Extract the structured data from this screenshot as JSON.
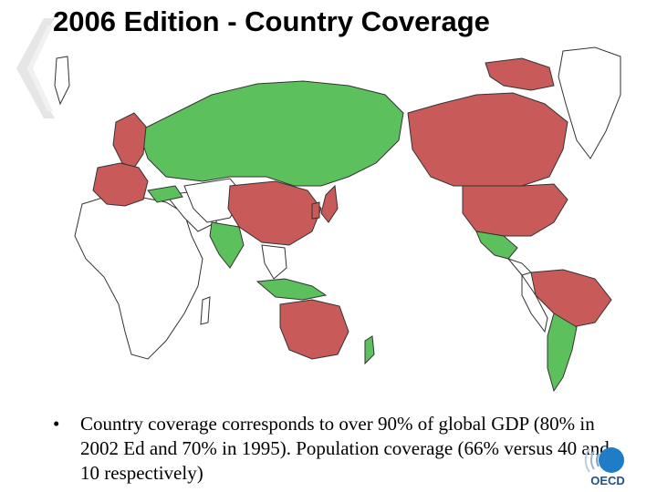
{
  "slide": {
    "title": "2006 Edition - Country Coverage",
    "bullet_marker": "•",
    "bullet_text": "Country coverage corresponds to over 90% of global GDP (80% in 2002 Ed and 70% in 1995). Population coverage (66% versus 40 and 10 respectively)",
    "logo_text": "OECD"
  },
  "colors": {
    "oecd_member": "#c85a5a",
    "non_member_covered": "#5cc15c",
    "not_covered": "#ffffff",
    "border": "#333333",
    "logo_blue": "#1f7cc7"
  }
}
